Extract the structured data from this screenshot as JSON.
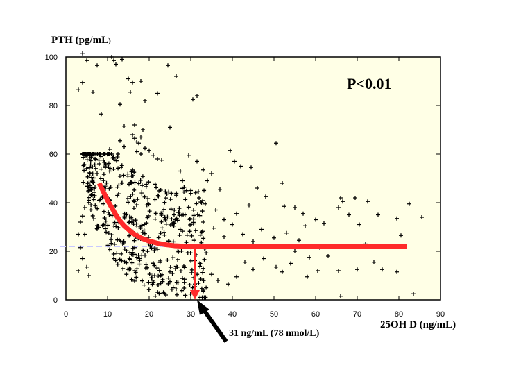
{
  "chart_data": {
    "type": "scatter",
    "title": "",
    "ylabel_prefix": "PTH",
    "ylabel_unit": " (pg/mL",
    "ylabel_close": ")",
    "xlabel": "25OH D (ng/mL)",
    "xlim": [
      0,
      90
    ],
    "ylim": [
      0,
      100
    ],
    "x_ticks": [
      "0",
      "10",
      "20",
      "30",
      "40",
      "50",
      "60",
      "70",
      "80",
      "90"
    ],
    "y_ticks": [
      "0",
      "20",
      "40",
      "60",
      "80",
      "100"
    ],
    "p_value_text": "P<0.01",
    "threshold_annotation": "31 ng/mL (78 nmol/L)",
    "threshold_x": 31,
    "plateau_y": 22,
    "plot_background": "#ffffe6",
    "fit_curve_color": "#ff2a2a",
    "reference_line_color": "#c8c8ff",
    "marker_color": "#000000",
    "fit_curve": [
      [
        8.0,
        48.0
      ],
      [
        9.0,
        44.5
      ],
      [
        10.0,
        41.0
      ],
      [
        11.0,
        38.0
      ],
      [
        12.0,
        35.0
      ],
      [
        13.0,
        32.5
      ],
      [
        14.0,
        30.5
      ],
      [
        15.0,
        29.0
      ],
      [
        16.0,
        27.5
      ],
      [
        18.0,
        25.5
      ],
      [
        20.0,
        24.2
      ],
      [
        22.0,
        23.3
      ],
      [
        24.0,
        22.7
      ],
      [
        26.0,
        22.3
      ],
      [
        28.0,
        22.1
      ],
      [
        31.0,
        22.0
      ],
      [
        82.0,
        22.0
      ]
    ],
    "series": [
      {
        "points": [
          [
            3.0,
            86.5
          ],
          [
            4.0,
            89.5
          ],
          [
            4.0,
            101.5
          ],
          [
            5.0,
            98.5
          ],
          [
            6.5,
            85.5
          ],
          [
            7.5,
            96.5
          ],
          [
            8.5,
            76.5
          ],
          [
            9.0,
            57.5
          ],
          [
            10.5,
            53.0
          ],
          [
            11.0,
            100.0
          ],
          [
            11.5,
            98.5
          ],
          [
            12.0,
            97.0
          ],
          [
            13.0,
            80.5
          ],
          [
            13.5,
            99.0
          ],
          [
            14.0,
            71.5
          ],
          [
            15.0,
            91.0
          ],
          [
            16.0,
            89.5
          ],
          [
            15.5,
            85.5
          ],
          [
            18.0,
            90.0
          ],
          [
            19.0,
            82.0
          ],
          [
            22.0,
            85.0
          ],
          [
            24.5,
            96.5
          ],
          [
            26.5,
            92.0
          ],
          [
            30.5,
            82.5
          ],
          [
            31.5,
            84.0
          ],
          [
            16.0,
            68.0
          ],
          [
            16.5,
            66.5
          ],
          [
            17.0,
            65.0
          ],
          [
            17.5,
            64.5
          ],
          [
            18.0,
            67.0
          ],
          [
            16.5,
            72.0
          ],
          [
            18.5,
            70.0
          ],
          [
            17.0,
            61.0
          ],
          [
            18.0,
            60.0
          ],
          [
            19.0,
            62.5
          ],
          [
            20.0,
            61.5
          ],
          [
            21.0,
            59.5
          ],
          [
            22.0,
            58.0
          ],
          [
            23.0,
            57.5
          ],
          [
            14.0,
            63.0
          ],
          [
            13.0,
            65.5
          ],
          [
            12.5,
            60.0
          ],
          [
            11.5,
            58.0
          ],
          [
            10.5,
            62.0
          ],
          [
            9.5,
            54.5
          ],
          [
            8.0,
            56.0
          ],
          [
            7.5,
            52.0
          ],
          [
            6.5,
            48.5
          ],
          [
            6.0,
            45.5
          ],
          [
            5.5,
            41.0
          ],
          [
            4.5,
            38.0
          ],
          [
            4.0,
            34.5
          ],
          [
            3.5,
            32.0
          ],
          [
            3.0,
            27.0
          ],
          [
            4.5,
            27.0
          ],
          [
            3.5,
            21.5
          ],
          [
            4.0,
            17.0
          ],
          [
            3.0,
            12.0
          ],
          [
            5.0,
            13.5
          ],
          [
            5.5,
            10.0
          ],
          [
            25.0,
            71.0
          ],
          [
            27.5,
            53.0
          ],
          [
            28.0,
            49.0
          ],
          [
            29.5,
            59.5
          ],
          [
            31.5,
            57.0
          ],
          [
            33.0,
            53.5
          ],
          [
            34.0,
            49.0
          ],
          [
            35.0,
            52.0
          ],
          [
            37.0,
            45.5
          ],
          [
            39.5,
            61.5
          ],
          [
            40.5,
            57.0
          ],
          [
            42.0,
            55.0
          ],
          [
            44.5,
            54.5
          ],
          [
            46.0,
            46.0
          ],
          [
            50.5,
            64.5
          ],
          [
            52.0,
            48.0
          ],
          [
            48.0,
            42.5
          ],
          [
            44.0,
            39.0
          ],
          [
            41.0,
            35.5
          ],
          [
            38.0,
            33.0
          ],
          [
            36.0,
            37.0
          ],
          [
            33.5,
            39.5
          ],
          [
            32.0,
            42.0
          ],
          [
            30.0,
            45.0
          ],
          [
            52.5,
            38.5
          ],
          [
            55.0,
            38.0
          ],
          [
            57.0,
            35.5
          ],
          [
            60.0,
            33.0
          ],
          [
            62.0,
            31.5
          ],
          [
            66.0,
            42.0
          ],
          [
            66.5,
            40.5
          ],
          [
            65.5,
            38.0
          ],
          [
            69.5,
            42.0
          ],
          [
            72.5,
            40.5
          ],
          [
            68.0,
            35.0
          ],
          [
            70.5,
            31.0
          ],
          [
            72.0,
            23.0
          ],
          [
            75.0,
            35.0
          ],
          [
            79.5,
            33.5
          ],
          [
            80.5,
            26.5
          ],
          [
            82.5,
            39.5
          ],
          [
            85.5,
            34.0
          ],
          [
            83.5,
            2.5
          ],
          [
            74.0,
            15.5
          ],
          [
            76.0,
            12.5
          ],
          [
            79.5,
            11.5
          ],
          [
            70.0,
            12.5
          ],
          [
            65.5,
            12.0
          ],
          [
            66.0,
            1.5
          ],
          [
            60.5,
            12.0
          ],
          [
            58.0,
            9.5
          ],
          [
            54.0,
            15.0
          ],
          [
            52.0,
            11.5
          ],
          [
            50.5,
            13.5
          ],
          [
            47.5,
            17.0
          ],
          [
            45.0,
            12.5
          ],
          [
            43.0,
            15.5
          ],
          [
            41.0,
            9.5
          ],
          [
            39.0,
            6.5
          ],
          [
            36.5,
            8.0
          ],
          [
            35.0,
            10.5
          ],
          [
            33.0,
            4.0
          ],
          [
            31.0,
            6.5
          ],
          [
            28.5,
            8.5
          ],
          [
            26.5,
            4.5
          ],
          [
            24.0,
            2.0
          ],
          [
            21.5,
            1.5
          ],
          [
            57.5,
            30.5
          ],
          [
            56.0,
            24.5
          ],
          [
            53.0,
            27.5
          ],
          [
            50.0,
            25.5
          ],
          [
            47.0,
            29.0
          ],
          [
            45.0,
            24.0
          ],
          [
            42.5,
            27.0
          ],
          [
            40.0,
            31.0
          ],
          [
            38.0,
            26.0
          ],
          [
            35.5,
            29.5
          ],
          [
            33.0,
            32.0
          ],
          [
            61.0,
            21.5
          ],
          [
            63.0,
            18.0
          ],
          [
            58.5,
            17.5
          ],
          [
            55.0,
            20.0
          ]
        ]
      }
    ]
  }
}
